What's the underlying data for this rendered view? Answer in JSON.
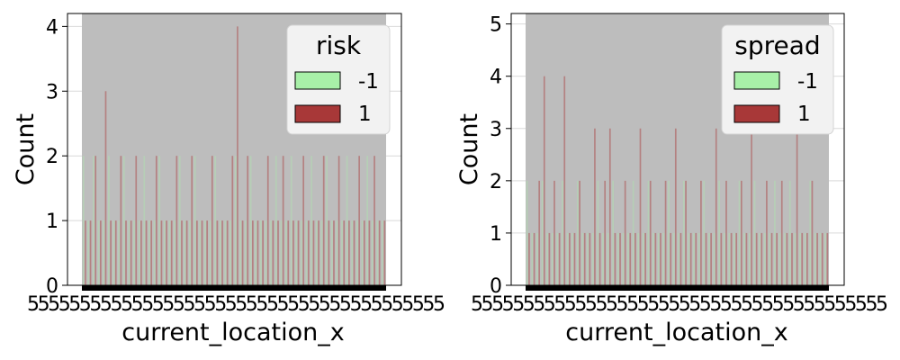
{
  "chart_data": [
    {
      "type": "bar",
      "xlabel": "current_location_x",
      "ylabel": "Count",
      "ylim": [
        0,
        4.2
      ],
      "yticks": [
        "0",
        "1",
        "2",
        "3",
        "4"
      ],
      "grid": true,
      "legend": {
        "title": "risk",
        "placement": "top-right",
        "entries": [
          {
            "label": "-1",
            "color": "#a8f0a8"
          },
          {
            "label": "1",
            "color": "#a83838"
          }
        ]
      },
      "x_tick_text": "5",
      "background_fill": "#bdbdbd",
      "series": [
        {
          "name": "-1",
          "values": [
            2,
            1,
            2,
            1,
            1,
            2,
            1,
            1,
            2,
            1,
            1,
            1,
            2,
            1,
            1,
            2,
            1,
            1,
            1,
            2,
            1,
            1,
            2,
            1,
            1,
            1,
            2,
            1,
            1,
            1,
            2,
            1,
            1,
            2,
            1,
            1,
            1,
            1,
            2,
            1,
            1,
            2,
            1,
            1,
            1,
            2,
            1,
            1,
            2,
            1,
            1,
            1,
            2,
            1,
            1,
            1,
            2,
            1,
            1,
            1
          ]
        },
        {
          "name": "1",
          "values": [
            1,
            1,
            2,
            1,
            3,
            1,
            1,
            2,
            1,
            1,
            2,
            1,
            1,
            1,
            2,
            1,
            1,
            1,
            2,
            1,
            1,
            2,
            1,
            1,
            1,
            2,
            1,
            1,
            1,
            2,
            4,
            1,
            2,
            1,
            1,
            1,
            2,
            1,
            1,
            2,
            1,
            1,
            1,
            2,
            1,
            1,
            1,
            2,
            1,
            1,
            2,
            1,
            1,
            1,
            2,
            1,
            1,
            2,
            1,
            1
          ]
        }
      ]
    },
    {
      "type": "bar",
      "xlabel": "current_location_x",
      "ylabel": "Count",
      "ylim": [
        0,
        5.2
      ],
      "yticks": [
        "0",
        "1",
        "2",
        "3",
        "4",
        "5"
      ],
      "grid": true,
      "legend": {
        "title": "spread",
        "placement": "top-right",
        "entries": [
          {
            "label": "-1",
            "color": "#a8f0a8"
          },
          {
            "label": "1",
            "color": "#a83838"
          }
        ]
      },
      "x_tick_text": "5",
      "background_fill": "#bdbdbd",
      "series": [
        {
          "name": "-1",
          "values": [
            2,
            1,
            1,
            2,
            1,
            1,
            1,
            2,
            1,
            1,
            2,
            1,
            1,
            1,
            2,
            1,
            1,
            2,
            1,
            1,
            1,
            2,
            1,
            1,
            2,
            1,
            1,
            1,
            2,
            1,
            1,
            2,
            1,
            1,
            1,
            2,
            1,
            1,
            2,
            1,
            1,
            1,
            2,
            1,
            1,
            2,
            1,
            1,
            1,
            2,
            1,
            1,
            2,
            1,
            1,
            1,
            2,
            1,
            1,
            1
          ]
        },
        {
          "name": "1",
          "values": [
            1,
            1,
            2,
            4,
            1,
            2,
            1,
            4,
            1,
            1,
            2,
            1,
            1,
            3,
            1,
            2,
            3,
            1,
            1,
            2,
            1,
            1,
            3,
            1,
            2,
            1,
            1,
            2,
            1,
            3,
            1,
            2,
            1,
            1,
            2,
            1,
            1,
            3,
            1,
            2,
            1,
            1,
            2,
            1,
            3,
            1,
            1,
            2,
            1,
            1,
            2,
            1,
            1,
            3,
            1,
            1,
            2,
            1,
            1,
            1
          ]
        }
      ]
    }
  ]
}
